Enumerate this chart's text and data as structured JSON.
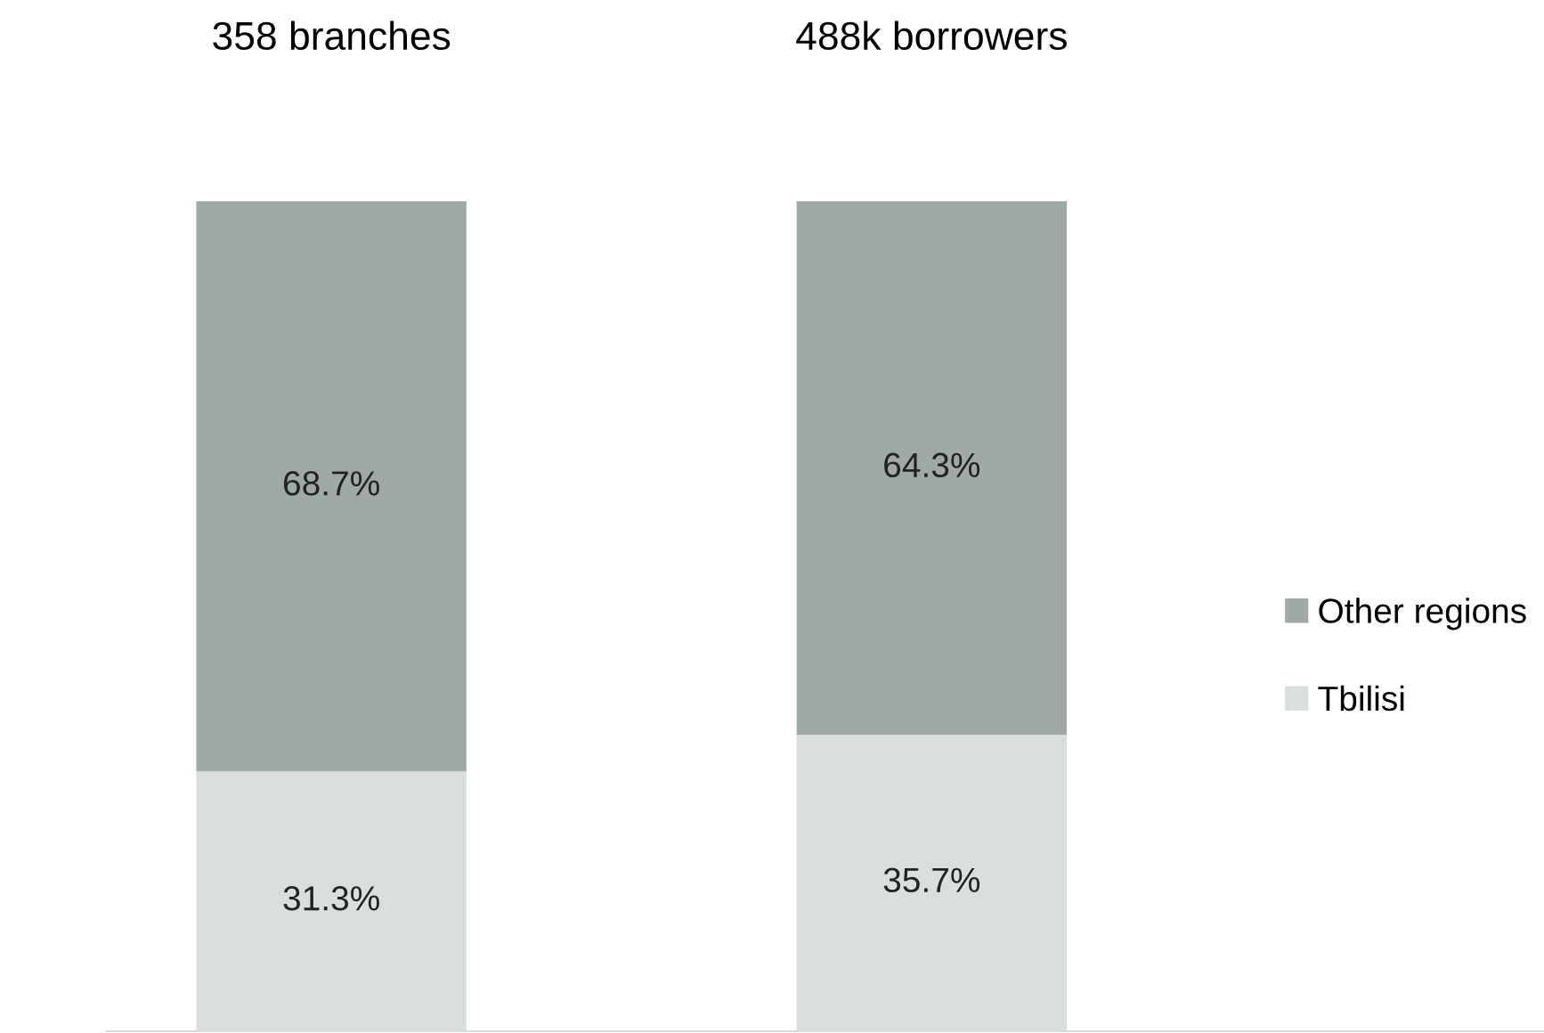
{
  "chart_data": {
    "type": "bar",
    "stacked": true,
    "categories": [
      "358 branches",
      "488k borrowers"
    ],
    "series": [
      {
        "name": "Tbilisi",
        "color": "#d8dfde",
        "values": [
          31.3,
          35.7
        ],
        "value_labels": [
          "31.3%",
          "35.7%"
        ]
      },
      {
        "name": "Other regions",
        "color": "#9eaaa8",
        "values": [
          68.7,
          64.3
        ],
        "value_labels": [
          "68.7%",
          "64.3%"
        ]
      }
    ],
    "legend": "right",
    "grid": false,
    "tick_labels": "x"
  }
}
